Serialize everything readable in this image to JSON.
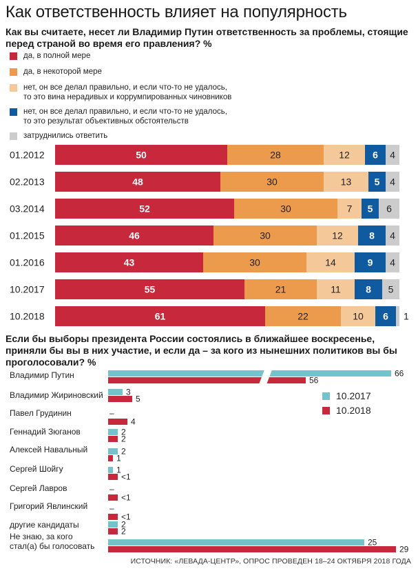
{
  "title": "Как ответственность влияет на популярность",
  "question1": "Как вы считаете, несет ли Владимир Путин ответственность за проблемы, стоящие перед страной во время его правления? %",
  "question2": "Если бы выборы президента России состоялись в ближайшее воскресенье, приняли бы вы в них участие, и если да – за кого из нынешних политиков вы бы проголосовали? %",
  "source": "ИСТОЧНИК: «ЛЕВАДА-ЦЕНТР», ОПРОС ПРОВЕДЕН 18–24 ОКТЯБРЯ 2018 ГОДА",
  "colors": {
    "full": "#c8283c",
    "some": "#ec9a4b",
    "officials": "#f5c899",
    "circumstances": "#105aa0",
    "dk": "#cccccc",
    "y2017": "#74c3cc",
    "y2018": "#c8283c"
  },
  "legend1": [
    {
      "label": "да, в полной мере",
      "color_key": "full"
    },
    {
      "label": "да, в некоторой мере",
      "color_key": "some"
    },
    {
      "label": "нет, он все делал правильно, и если что-то не удалось,\nто это вина нерадивых и коррумпированных чиновников",
      "color_key": "officials"
    },
    {
      "label": "нет, он все делал правильно, и если что-то не удалось,\nто это результат объективных обстоятельств",
      "color_key": "circumstances"
    },
    {
      "label": "затруднились ответить",
      "color_key": "dk"
    }
  ],
  "legend2": [
    {
      "label": "10.2017",
      "color_key": "y2017"
    },
    {
      "label": "10.2018",
      "color_key": "y2018"
    }
  ],
  "chart_data": [
    {
      "type": "bar",
      "orientation": "horizontal",
      "stacked": true,
      "categories": [
        "01.2012",
        "02.2013",
        "03.2014",
        "01.2015",
        "01.2016",
        "10.2017",
        "10.2018"
      ],
      "series": [
        {
          "name": "да, в полной мере",
          "values": [
            50,
            48,
            52,
            46,
            43,
            55,
            61
          ]
        },
        {
          "name": "да, в некоторой мере",
          "values": [
            28,
            30,
            30,
            30,
            30,
            21,
            22
          ]
        },
        {
          "name": "нет, он все делал правильно, и если что-то не удалось, то это вина нерадивых и коррумпированных чиновников",
          "values": [
            12,
            13,
            7,
            12,
            14,
            11,
            10
          ]
        },
        {
          "name": "нет, он все делал правильно, и если что-то не удалось, то это результат объективных обстоятельств",
          "values": [
            6,
            5,
            5,
            8,
            9,
            8,
            6
          ]
        },
        {
          "name": "затруднились ответить",
          "values": [
            4,
            4,
            6,
            4,
            4,
            5,
            1
          ]
        }
      ],
      "xlim": [
        0,
        100
      ]
    },
    {
      "type": "bar",
      "orientation": "horizontal",
      "grouped": true,
      "categories": [
        "Владимир Путин",
        "Владимир Жириновский",
        "Павел Грудинин",
        "Геннадий Зюганов",
        "Алексей Навальный",
        "Сергей Шойгу",
        "Сергей Лавров",
        "Григорий Явлинский",
        "другие кандидаты",
        "Не знаю, за кого\nстал(а) бы голосовать"
      ],
      "series": [
        {
          "name": "10.2017",
          "values": [
            66,
            3,
            null,
            2,
            2,
            1,
            null,
            null,
            2,
            25
          ],
          "labels": [
            "66",
            "3",
            "–",
            "2",
            "2",
            "1",
            "–",
            "–",
            "2",
            "25"
          ]
        },
        {
          "name": "10.2018",
          "values": [
            56,
            5,
            4,
            2,
            1,
            0.5,
            0.5,
            0.5,
            2,
            29
          ],
          "labels": [
            "56",
            "5",
            "4",
            "2",
            "1",
            "<1",
            "<1",
            "<1",
            "2",
            "29"
          ]
        }
      ],
      "axis_break": true
    }
  ]
}
